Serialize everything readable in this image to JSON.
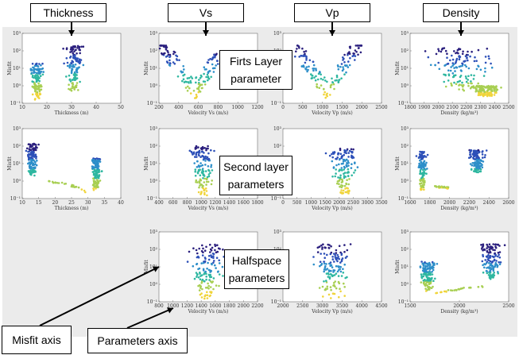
{
  "headers": [
    "Thickness",
    "Vs",
    "Vp",
    "Density"
  ],
  "annotations": {
    "first_layer": [
      "Firts Layer",
      "parameter"
    ],
    "second_layer": [
      "Second layer",
      "parameters"
    ],
    "halfspace": [
      "Halfspace",
      "parameters"
    ],
    "misfit_axis": "Misfit axis",
    "parameters_axis": "Parameters axis"
  },
  "colors": {
    "background": "#ebebeb",
    "scale": [
      "#f0d43a",
      "#a8cf52",
      "#2eb7a0",
      "#2c8ec9",
      "#2d50b8",
      "#2a1f7e"
    ]
  },
  "chart_data": [
    {
      "type": "scatter",
      "row": 0,
      "col": 0,
      "ylabel": "Misfit",
      "xlabel": "Thickness (m)",
      "xlim": [
        10,
        50
      ],
      "xticks": [
        10,
        20,
        30,
        40,
        50
      ],
      "yscale": "log",
      "yticks": [
        "10⁻¹",
        "10⁰",
        "10¹",
        "10²",
        "10³"
      ],
      "clusters": [
        {
          "x": [
            12,
            20
          ],
          "ymin": 0.15,
          "ymax": 20
        },
        {
          "x": [
            25,
            37
          ],
          "ymin": 0.5,
          "ymax": 200
        }
      ]
    },
    {
      "type": "scatter",
      "row": 0,
      "col": 1,
      "ylabel": "Misfit",
      "xlabel": "Velocity Vs (m/s)",
      "xlim": [
        200,
        1200
      ],
      "xticks": [
        200,
        400,
        600,
        800,
        1000,
        1200
      ],
      "yscale": "log",
      "yticks": [
        "10⁻¹",
        "10⁰",
        "10¹",
        "10²",
        "10³"
      ],
      "clusters": [
        {
          "shape": "V",
          "x": [
            200,
            800
          ],
          "xmin_point": [
            560,
            0.15
          ],
          "ymax": 200
        }
      ]
    },
    {
      "type": "scatter",
      "row": 0,
      "col": 2,
      "ylabel": "Misfit",
      "xlabel": "Velocity Vp (m/s)",
      "xlim": [
        0,
        2500
      ],
      "xticks": [
        0,
        500,
        1000,
        1500,
        2000,
        2500
      ],
      "yscale": "log",
      "yticks": [
        "10⁻¹",
        "10⁰",
        "10¹",
        "10²",
        "10³"
      ],
      "clusters": [
        {
          "shape": "V",
          "x": [
            300,
            2000
          ],
          "xmin_point": [
            1100,
            0.15
          ],
          "ymax": 200
        }
      ]
    },
    {
      "type": "scatter",
      "row": 0,
      "col": 3,
      "ylabel": "Misfit",
      "xlabel": "Density (kg/m³)",
      "xlim": [
        1800,
        2500
      ],
      "xticks": [
        1800,
        1900,
        2000,
        2100,
        2200,
        2300,
        2400,
        2500
      ],
      "yscale": "log",
      "yticks": [
        "10⁻¹",
        "10⁰",
        "10¹",
        "10²",
        "10³"
      ],
      "clusters": [
        {
          "x": [
            1800,
            2500
          ],
          "ymin": 0.5,
          "ymax": 150
        },
        {
          "x": [
            2150,
            2500
          ],
          "ymin": 0.25,
          "ymax": 1
        }
      ]
    },
    {
      "type": "scatter",
      "row": 1,
      "col": 0,
      "ylabel": "Misfit",
      "xlabel": "Thickness (m)",
      "xlim": [
        10,
        40
      ],
      "xticks": [
        10,
        15,
        20,
        25,
        30,
        35,
        40
      ],
      "yscale": "log",
      "yticks": [
        "10⁻¹",
        "10⁰",
        "10¹",
        "10²",
        "10³"
      ],
      "clusters": [
        {
          "x": [
            10,
            16
          ],
          "ymin": 2,
          "ymax": 150
        },
        {
          "x": [
            30,
            35
          ],
          "ymin": 0.3,
          "ymax": 20
        },
        {
          "shape": "trail",
          "x": [
            18,
            30
          ],
          "y": [
            1,
            0.2
          ]
        }
      ]
    },
    {
      "type": "scatter",
      "row": 1,
      "col": 1,
      "ylabel": "Misfit",
      "xlabel": "Velocity Vs (m/s)",
      "xlim": [
        400,
        1800
      ],
      "xticks": [
        400,
        600,
        800,
        1000,
        1200,
        1400,
        1600,
        1800
      ],
      "yscale": "log",
      "yticks": [
        "10⁻¹",
        "10⁰",
        "10¹",
        "10²",
        "10³"
      ],
      "clusters": [
        {
          "x": [
            750,
            1300
          ],
          "ymin": 0.15,
          "ymax": 100
        }
      ]
    },
    {
      "type": "scatter",
      "row": 1,
      "col": 2,
      "ylabel": "Misfit",
      "xlabel": "Velocity Vp (m/s)",
      "xlim": [
        0,
        3500
      ],
      "xticks": [
        0,
        500,
        1000,
        1500,
        2000,
        2500,
        3000,
        3500
      ],
      "yscale": "log",
      "yticks": [
        "10⁻¹",
        "10⁰",
        "10¹",
        "10²",
        "10³"
      ],
      "clusters": [
        {
          "x": [
            1300,
            3000
          ],
          "ymin": 0.15,
          "ymax": 80
        }
      ]
    },
    {
      "type": "scatter",
      "row": 1,
      "col": 3,
      "ylabel": "Misfit",
      "xlabel": "Density (kg/m³)",
      "xlim": [
        1600,
        2600
      ],
      "xticks": [
        1600,
        1800,
        2000,
        2200,
        2400,
        2600
      ],
      "yscale": "log",
      "yticks": [
        "10⁻¹",
        "10⁰",
        "10¹",
        "10²",
        "10³"
      ],
      "clusters": [
        {
          "x": [
            1650,
            1800
          ],
          "ymin": 0.3,
          "ymax": 50
        },
        {
          "x": [
            2150,
            2400
          ],
          "ymin": 3,
          "ymax": 60
        },
        {
          "shape": "trail",
          "x": [
            1850,
            2000
          ],
          "y": [
            0.5,
            0.4
          ]
        }
      ]
    },
    {
      "type": "scatter",
      "row": 2,
      "col": 1,
      "ylabel": "Misfit",
      "xlabel": "Velocity Vs (m/s)",
      "xlim": [
        800,
        2200
      ],
      "xticks": [
        800,
        1000,
        1200,
        1400,
        1600,
        1800,
        2000,
        2200
      ],
      "yscale": "log",
      "yticks": [
        "10⁻¹",
        "10⁰",
        "10¹",
        "10²",
        "10³"
      ],
      "clusters": [
        {
          "x": [
            1100,
            1900
          ],
          "ymin": 0.15,
          "ymax": 200
        }
      ]
    },
    {
      "type": "scatter",
      "row": 2,
      "col": 2,
      "ylabel": "Misfit",
      "xlabel": "Velocity Vp (m/s)",
      "xlim": [
        2000,
        4500
      ],
      "xticks": [
        2000,
        2500,
        3000,
        3500,
        4000,
        4500
      ],
      "yscale": "log",
      "yticks": [
        "10⁻¹",
        "10⁰",
        "10¹",
        "10²",
        "10³"
      ],
      "clusters": [
        {
          "x": [
            2500,
            4000
          ],
          "ymin": 0.15,
          "ymax": 200
        }
      ]
    },
    {
      "type": "scatter",
      "row": 2,
      "col": 3,
      "ylabel": "Misfit",
      "xlabel": "Density (kg/m³)",
      "xlim": [
        1500,
        2500
      ],
      "xticks": [
        1500,
        2000,
        2500
      ],
      "yscale": "log",
      "yticks": [
        "10⁻¹",
        "10⁰",
        "10¹",
        "10²",
        "10³"
      ],
      "clusters": [
        {
          "x": [
            1550,
            1800
          ],
          "ymin": 0.4,
          "ymax": 20
        },
        {
          "x": [
            2150,
            2500
          ],
          "ymin": 2,
          "ymax": 200
        },
        {
          "shape": "trail",
          "x": [
            1750,
            2300
          ],
          "y": [
            0.3,
            0.8
          ]
        }
      ]
    }
  ]
}
